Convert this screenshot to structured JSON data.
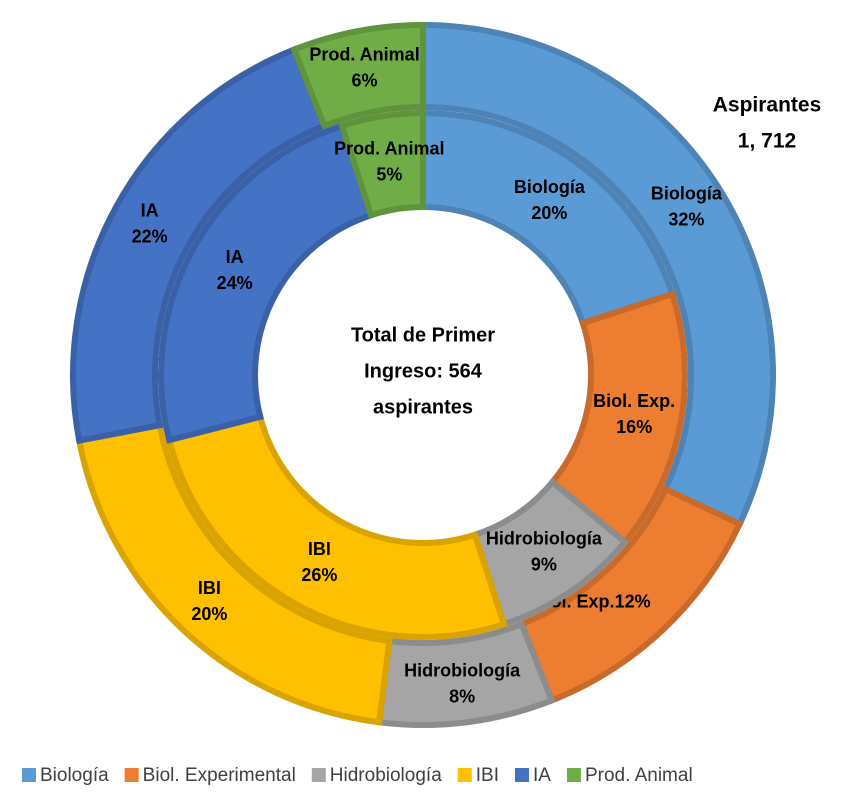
{
  "chart_data": {
    "type": "donut",
    "categories": [
      "Biología",
      "Biol. Experimental",
      "Hidrobiología",
      "IBI",
      "IA",
      "Prod. Animal"
    ],
    "colors": [
      "#5b9bd5",
      "#ed7d31",
      "#a5a5a5",
      "#ffc000",
      "#4472c4",
      "#70ad47"
    ],
    "center_text": [
      "Total de Primer",
      "Ingreso: 564",
      "aspirantes"
    ],
    "annotation": [
      "Aspirantes",
      "1, 712"
    ],
    "series": [
      {
        "ring": "outer",
        "values": [
          32,
          12,
          8,
          20,
          22,
          6
        ],
        "labels": [
          "Biología",
          "Biol. Exp.",
          "Hidrobiología",
          "IBI",
          "IA",
          "Prod. Animal"
        ],
        "value_labels": [
          "32%",
          "12%",
          "8%",
          "20%",
          "22%",
          "6%"
        ]
      },
      {
        "ring": "inner",
        "values": [
          20,
          16,
          9,
          26,
          24,
          5
        ],
        "labels": [
          "Biología",
          "Biol. Exp.",
          "Hidrobiología",
          "IBI",
          "IA",
          "Prod. Animal"
        ],
        "value_labels": [
          "20%",
          "16%",
          "9%",
          "26%",
          "24%",
          "5%"
        ]
      }
    ],
    "legend": "bottom"
  }
}
